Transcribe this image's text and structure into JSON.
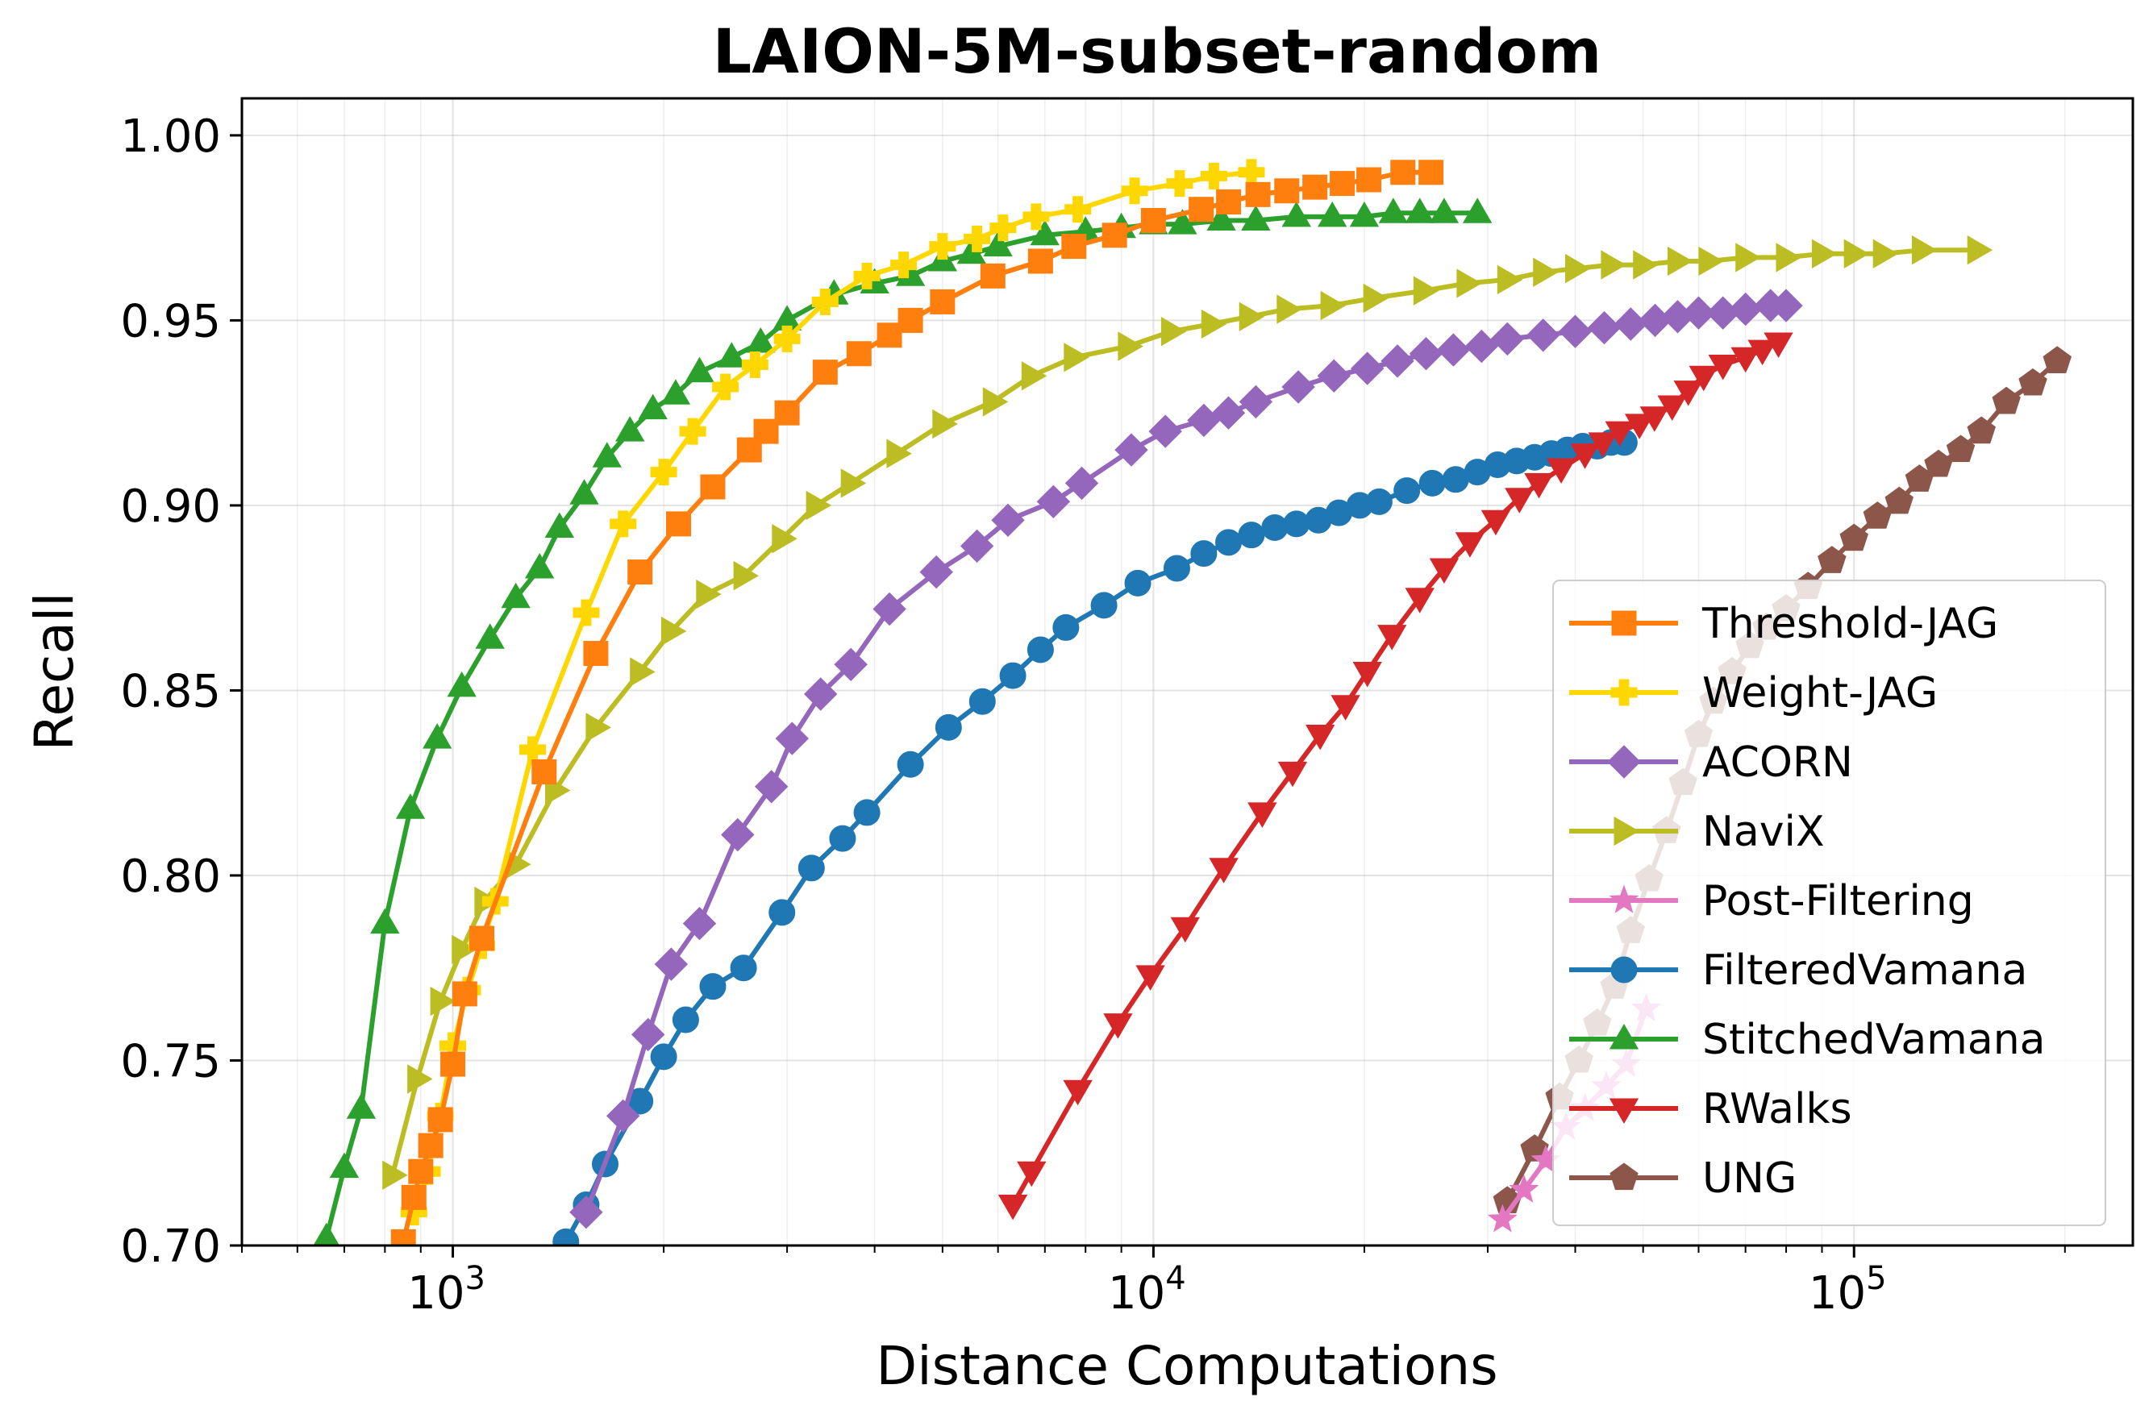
{
  "chart_data": {
    "type": "line",
    "title": "LAION-5M-subset-random",
    "xlabel": "Distance Computations",
    "ylabel": "Recall",
    "x_scale": "log",
    "xlim": [
      500,
      250000
    ],
    "ylim": [
      0.7,
      1.01
    ],
    "x_ticks": [
      1000,
      10000,
      100000
    ],
    "x_tick_labels": [
      {
        "base": "10",
        "exp": "3"
      },
      {
        "base": "10",
        "exp": "4"
      },
      {
        "base": "10",
        "exp": "5"
      }
    ],
    "y_ticks": [
      0.7,
      0.75,
      0.8,
      0.85,
      0.9,
      0.95,
      1.0
    ],
    "y_tick_labels": [
      "0.70",
      "0.75",
      "0.80",
      "0.85",
      "0.90",
      "0.95",
      "1.00"
    ],
    "grid": true,
    "legend_position": "lower-right",
    "series": [
      {
        "name": "Threshold-JAG",
        "color": "#ff7f0e",
        "marker": "square",
        "x": [
          850,
          880,
          900,
          930,
          960,
          1000,
          1040,
          1100,
          1350,
          1600,
          1850,
          2100,
          2350,
          2650,
          2800,
          3000,
          3400,
          3800,
          4200,
          4500,
          5000,
          5900,
          6900,
          7700,
          8800,
          10000,
          11700,
          12800,
          14100,
          15500,
          17000,
          18600,
          20300,
          22700,
          24900
        ],
        "y": [
          0.701,
          0.713,
          0.72,
          0.727,
          0.734,
          0.749,
          0.768,
          0.783,
          0.828,
          0.86,
          0.882,
          0.895,
          0.905,
          0.915,
          0.92,
          0.925,
          0.936,
          0.941,
          0.946,
          0.95,
          0.955,
          0.962,
          0.966,
          0.97,
          0.973,
          0.977,
          0.98,
          0.982,
          0.984,
          0.985,
          0.986,
          0.987,
          0.988,
          0.99,
          0.99
        ]
      },
      {
        "name": "Weight-JAG",
        "color": "#ffd700",
        "marker": "plus",
        "x": [
          880,
          920,
          960,
          1000,
          1050,
          1100,
          1150,
          1300,
          1550,
          1750,
          2000,
          2200,
          2450,
          2700,
          3000,
          3400,
          3900,
          4400,
          5000,
          5600,
          6100,
          6800,
          7800,
          9400,
          10900,
          12200,
          13800
        ],
        "y": [
          0.709,
          0.72,
          0.735,
          0.754,
          0.769,
          0.781,
          0.793,
          0.834,
          0.871,
          0.895,
          0.909,
          0.92,
          0.932,
          0.938,
          0.945,
          0.955,
          0.962,
          0.965,
          0.97,
          0.972,
          0.975,
          0.978,
          0.98,
          0.985,
          0.987,
          0.989,
          0.99
        ]
      },
      {
        "name": "ACORN",
        "color": "#9467bd",
        "marker": "diamond",
        "x": [
          1550,
          1750,
          1900,
          2050,
          2250,
          2550,
          2850,
          3050,
          3350,
          3700,
          4200,
          4900,
          5600,
          6200,
          7200,
          7900,
          9300,
          10400,
          11800,
          12800,
          14000,
          16100,
          18100,
          20200,
          22300,
          24500,
          26800,
          29400,
          32000,
          36000,
          40000,
          44000,
          48000,
          52000,
          56000,
          60000,
          65000,
          70000,
          76000,
          80000
        ],
        "y": [
          0.709,
          0.735,
          0.757,
          0.776,
          0.787,
          0.811,
          0.824,
          0.837,
          0.849,
          0.857,
          0.872,
          0.882,
          0.889,
          0.896,
          0.901,
          0.906,
          0.915,
          0.92,
          0.923,
          0.925,
          0.928,
          0.932,
          0.935,
          0.937,
          0.939,
          0.941,
          0.942,
          0.943,
          0.945,
          0.946,
          0.947,
          0.948,
          0.949,
          0.95,
          0.951,
          0.952,
          0.952,
          0.953,
          0.954,
          0.954
        ]
      },
      {
        "name": "NaviX",
        "color": "#bcbd22",
        "marker": "triangle-right",
        "x": [
          820,
          890,
          960,
          1030,
          1110,
          1230,
          1400,
          1600,
          1850,
          2050,
          2300,
          2600,
          2950,
          3300,
          3700,
          4300,
          5000,
          5900,
          6700,
          7700,
          9200,
          10600,
          12100,
          13700,
          15500,
          17900,
          20600,
          24300,
          28000,
          32000,
          36000,
          40000,
          45000,
          50000,
          56000,
          62000,
          70000,
          80000,
          90000,
          100000,
          110000,
          125000,
          150000
        ],
        "y": [
          0.719,
          0.745,
          0.766,
          0.78,
          0.793,
          0.803,
          0.823,
          0.84,
          0.855,
          0.866,
          0.876,
          0.881,
          0.891,
          0.9,
          0.906,
          0.914,
          0.922,
          0.928,
          0.935,
          0.94,
          0.943,
          0.947,
          0.949,
          0.951,
          0.953,
          0.954,
          0.956,
          0.958,
          0.96,
          0.961,
          0.963,
          0.964,
          0.965,
          0.965,
          0.966,
          0.966,
          0.967,
          0.967,
          0.968,
          0.968,
          0.968,
          0.969,
          0.969
        ]
      },
      {
        "name": "Post-Filtering",
        "color": "#e377c2",
        "marker": "star",
        "x": [
          31500,
          33800,
          36300,
          38800,
          41300,
          44300,
          47300,
          50500
        ],
        "y": [
          0.707,
          0.715,
          0.723,
          0.732,
          0.737,
          0.743,
          0.749,
          0.764
        ]
      },
      {
        "name": "FilteredVamana",
        "color": "#1f77b4",
        "marker": "circle",
        "x": [
          1450,
          1550,
          1650,
          1850,
          2000,
          2150,
          2350,
          2600,
          2950,
          3250,
          3600,
          3900,
          4500,
          5100,
          5700,
          6300,
          6900,
          7500,
          8500,
          9500,
          10800,
          11800,
          12800,
          13800,
          14900,
          16000,
          17200,
          18400,
          19700,
          21000,
          23000,
          25000,
          27000,
          29000,
          31000,
          33000,
          35000,
          37000,
          39000,
          41000,
          43000,
          45000,
          47000
        ],
        "y": [
          0.701,
          0.711,
          0.722,
          0.739,
          0.751,
          0.761,
          0.77,
          0.775,
          0.79,
          0.802,
          0.81,
          0.817,
          0.83,
          0.84,
          0.847,
          0.854,
          0.861,
          0.867,
          0.873,
          0.879,
          0.883,
          0.887,
          0.89,
          0.892,
          0.894,
          0.895,
          0.896,
          0.898,
          0.9,
          0.901,
          0.904,
          0.906,
          0.907,
          0.909,
          0.911,
          0.912,
          0.913,
          0.914,
          0.915,
          0.916,
          0.916,
          0.917,
          0.917
        ]
      },
      {
        "name": "StitchedVamana",
        "color": "#2ca02c",
        "marker": "triangle-up",
        "x": [
          660,
          700,
          740,
          800,
          870,
          950,
          1030,
          1130,
          1230,
          1330,
          1420,
          1540,
          1660,
          1790,
          1930,
          2080,
          2250,
          2500,
          2750,
          3000,
          3500,
          4000,
          4500,
          5000,
          5500,
          6000,
          7000,
          8000,
          9000,
          10000,
          11000,
          12500,
          14000,
          16000,
          18000,
          20000,
          22000,
          24000,
          26000,
          29000
        ],
        "y": [
          0.702,
          0.721,
          0.737,
          0.787,
          0.818,
          0.837,
          0.851,
          0.864,
          0.875,
          0.883,
          0.894,
          0.903,
          0.913,
          0.92,
          0.926,
          0.93,
          0.936,
          0.94,
          0.944,
          0.95,
          0.957,
          0.96,
          0.962,
          0.966,
          0.968,
          0.97,
          0.973,
          0.974,
          0.975,
          0.976,
          0.976,
          0.977,
          0.977,
          0.978,
          0.978,
          0.978,
          0.979,
          0.979,
          0.979,
          0.979
        ]
      },
      {
        "name": "RWalks",
        "color": "#d62728",
        "marker": "triangle-down",
        "x": [
          6300,
          6700,
          7800,
          8900,
          9900,
          11100,
          12600,
          14300,
          15800,
          17300,
          18800,
          20200,
          21900,
          24000,
          26000,
          28300,
          30800,
          33300,
          35500,
          38200,
          41300,
          43800,
          46300,
          49400,
          51900,
          55000,
          58000,
          61000,
          65000,
          70000,
          74000,
          78000
        ],
        "y": [
          0.711,
          0.72,
          0.742,
          0.76,
          0.773,
          0.786,
          0.802,
          0.817,
          0.828,
          0.838,
          0.846,
          0.855,
          0.865,
          0.875,
          0.883,
          0.89,
          0.896,
          0.902,
          0.906,
          0.91,
          0.914,
          0.917,
          0.92,
          0.922,
          0.924,
          0.927,
          0.931,
          0.935,
          0.938,
          0.94,
          0.942,
          0.944
        ]
      },
      {
        "name": "UNG",
        "color": "#8c564b",
        "marker": "pentagon",
        "x": [
          32000,
          35000,
          38000,
          40500,
          43000,
          45500,
          48000,
          51000,
          54000,
          57000,
          60000,
          63000,
          67000,
          71000,
          75000,
          80000,
          86000,
          93000,
          100000,
          108000,
          116000,
          124000,
          132000,
          142000,
          152000,
          165000,
          180000,
          195000
        ],
        "y": [
          0.712,
          0.726,
          0.74,
          0.75,
          0.76,
          0.77,
          0.785,
          0.799,
          0.812,
          0.825,
          0.838,
          0.847,
          0.855,
          0.862,
          0.867,
          0.872,
          0.878,
          0.885,
          0.891,
          0.897,
          0.901,
          0.907,
          0.911,
          0.915,
          0.92,
          0.928,
          0.933,
          0.939
        ]
      }
    ]
  }
}
